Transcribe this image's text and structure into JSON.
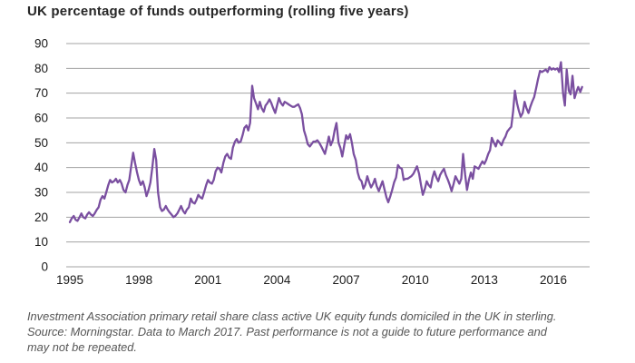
{
  "title": "UK percentage of funds outperforming (rolling five years)",
  "footnote_lines": [
    "Investment Association primary retail share class active UK equity funds domiciled in the UK in sterling.",
    "Source: Morningstar. Data to March 2017. Past performance is not a guide to future performance and",
    "may not be repeated."
  ],
  "colors": {
    "line": "#7a4fa0",
    "grid": "#a3a3a3",
    "title_text": "#262626",
    "tick_text": "#1a1a1a",
    "footnote_text": "#555555"
  },
  "chart_data": {
    "type": "line",
    "title": "UK percentage of funds outperforming (rolling five years)",
    "xlabel": "",
    "ylabel": "",
    "ylim": [
      0,
      90
    ],
    "xlim": [
      1995,
      2017.25
    ],
    "grid": true,
    "legend_position": "none",
    "x_ticks": [
      1995,
      1998,
      2001,
      2004,
      2007,
      2010,
      2013,
      2016
    ],
    "y_ticks": [
      90,
      80,
      70,
      60,
      50,
      40,
      30,
      20,
      10,
      0
    ],
    "series": [
      {
        "name": "UK percentage of funds outperforming (rolling five years)",
        "color": "#7a4fa0",
        "points": [
          [
            1995.0,
            18
          ],
          [
            1995.08,
            19.5
          ],
          [
            1995.17,
            20.5
          ],
          [
            1995.25,
            19
          ],
          [
            1995.33,
            18.5
          ],
          [
            1995.42,
            20
          ],
          [
            1995.5,
            21.5
          ],
          [
            1995.58,
            20
          ],
          [
            1995.67,
            19.5
          ],
          [
            1995.75,
            21
          ],
          [
            1995.83,
            22
          ],
          [
            1995.92,
            21
          ],
          [
            1996.0,
            20.5
          ],
          [
            1996.08,
            21.5
          ],
          [
            1996.17,
            23
          ],
          [
            1996.25,
            24
          ],
          [
            1996.33,
            27
          ],
          [
            1996.42,
            28.5
          ],
          [
            1996.5,
            27.5
          ],
          [
            1996.58,
            30
          ],
          [
            1996.67,
            33
          ],
          [
            1996.75,
            35
          ],
          [
            1996.83,
            34
          ],
          [
            1996.92,
            34.5
          ],
          [
            1997.0,
            35.5
          ],
          [
            1997.08,
            34
          ],
          [
            1997.17,
            35
          ],
          [
            1997.25,
            33.5
          ],
          [
            1997.33,
            31
          ],
          [
            1997.42,
            30
          ],
          [
            1997.5,
            33
          ],
          [
            1997.58,
            35
          ],
          [
            1997.67,
            41
          ],
          [
            1997.75,
            46
          ],
          [
            1997.83,
            42
          ],
          [
            1997.92,
            38
          ],
          [
            1998.0,
            35
          ],
          [
            1998.08,
            33
          ],
          [
            1998.17,
            34.5
          ],
          [
            1998.25,
            32
          ],
          [
            1998.33,
            28.5
          ],
          [
            1998.42,
            31
          ],
          [
            1998.5,
            34
          ],
          [
            1998.58,
            40
          ],
          [
            1998.67,
            47.5
          ],
          [
            1998.75,
            43
          ],
          [
            1998.83,
            30
          ],
          [
            1998.92,
            24
          ],
          [
            1999.0,
            22.5
          ],
          [
            1999.08,
            23
          ],
          [
            1999.17,
            24.5
          ],
          [
            1999.25,
            23
          ],
          [
            1999.33,
            22
          ],
          [
            1999.42,
            21
          ],
          [
            1999.5,
            20
          ],
          [
            1999.58,
            20.5
          ],
          [
            1999.67,
            21.5
          ],
          [
            1999.75,
            23
          ],
          [
            1999.83,
            24.5
          ],
          [
            1999.92,
            22.5
          ],
          [
            2000.0,
            21.5
          ],
          [
            2000.08,
            23
          ],
          [
            2000.17,
            24
          ],
          [
            2000.25,
            27.5
          ],
          [
            2000.33,
            26
          ],
          [
            2000.42,
            25.5
          ],
          [
            2000.5,
            27
          ],
          [
            2000.58,
            29
          ],
          [
            2000.67,
            28
          ],
          [
            2000.75,
            27.5
          ],
          [
            2000.83,
            30
          ],
          [
            2000.92,
            33
          ],
          [
            2001.0,
            35
          ],
          [
            2001.08,
            34
          ],
          [
            2001.17,
            33.5
          ],
          [
            2001.25,
            35
          ],
          [
            2001.33,
            38.5
          ],
          [
            2001.42,
            40
          ],
          [
            2001.5,
            39.5
          ],
          [
            2001.58,
            38
          ],
          [
            2001.67,
            42
          ],
          [
            2001.75,
            44.5
          ],
          [
            2001.83,
            45.5
          ],
          [
            2001.92,
            44
          ],
          [
            2002.0,
            43.5
          ],
          [
            2002.08,
            48
          ],
          [
            2002.17,
            50.5
          ],
          [
            2002.25,
            51.5
          ],
          [
            2002.33,
            50
          ],
          [
            2002.42,
            50.5
          ],
          [
            2002.5,
            53
          ],
          [
            2002.58,
            56
          ],
          [
            2002.67,
            57
          ],
          [
            2002.75,
            55
          ],
          [
            2002.83,
            58
          ],
          [
            2002.92,
            73
          ],
          [
            2003.0,
            68
          ],
          [
            2003.08,
            66
          ],
          [
            2003.17,
            63.5
          ],
          [
            2003.25,
            66.5
          ],
          [
            2003.33,
            64
          ],
          [
            2003.42,
            62.5
          ],
          [
            2003.5,
            65
          ],
          [
            2003.58,
            66
          ],
          [
            2003.67,
            67.5
          ],
          [
            2003.75,
            66
          ],
          [
            2003.83,
            64
          ],
          [
            2003.92,
            62
          ],
          [
            2004.0,
            65
          ],
          [
            2004.08,
            68
          ],
          [
            2004.17,
            66
          ],
          [
            2004.25,
            65
          ],
          [
            2004.33,
            66.5
          ],
          [
            2004.42,
            66
          ],
          [
            2004.5,
            65.5
          ],
          [
            2004.58,
            65
          ],
          [
            2004.67,
            64.5
          ],
          [
            2004.75,
            64.5
          ],
          [
            2004.83,
            65
          ],
          [
            2004.92,
            65.5
          ],
          [
            2005.0,
            64
          ],
          [
            2005.08,
            61.5
          ],
          [
            2005.17,
            55
          ],
          [
            2005.25,
            52.5
          ],
          [
            2005.33,
            49.5
          ],
          [
            2005.42,
            48.5
          ],
          [
            2005.5,
            49.5
          ],
          [
            2005.58,
            50.5
          ],
          [
            2005.67,
            50.5
          ],
          [
            2005.75,
            51
          ],
          [
            2005.83,
            50
          ],
          [
            2005.92,
            48.5
          ],
          [
            2006.0,
            47
          ],
          [
            2006.08,
            45.5
          ],
          [
            2006.17,
            49
          ],
          [
            2006.25,
            52.5
          ],
          [
            2006.33,
            49
          ],
          [
            2006.42,
            51
          ],
          [
            2006.5,
            55
          ],
          [
            2006.58,
            58
          ],
          [
            2006.67,
            50
          ],
          [
            2006.75,
            48
          ],
          [
            2006.83,
            44.5
          ],
          [
            2006.92,
            49
          ],
          [
            2007.0,
            53
          ],
          [
            2007.08,
            51.5
          ],
          [
            2007.17,
            53.5
          ],
          [
            2007.25,
            50
          ],
          [
            2007.33,
            45.5
          ],
          [
            2007.42,
            43
          ],
          [
            2007.5,
            38
          ],
          [
            2007.58,
            35.5
          ],
          [
            2007.67,
            34.5
          ],
          [
            2007.75,
            31.5
          ],
          [
            2007.83,
            33
          ],
          [
            2007.92,
            36.5
          ],
          [
            2008.0,
            34
          ],
          [
            2008.08,
            32
          ],
          [
            2008.17,
            33.5
          ],
          [
            2008.25,
            35.5
          ],
          [
            2008.33,
            32.5
          ],
          [
            2008.42,
            30.5
          ],
          [
            2008.5,
            32.5
          ],
          [
            2008.58,
            34.5
          ],
          [
            2008.67,
            31
          ],
          [
            2008.75,
            28
          ],
          [
            2008.83,
            26
          ],
          [
            2008.92,
            28.5
          ],
          [
            2009.0,
            31
          ],
          [
            2009.08,
            34
          ],
          [
            2009.17,
            36
          ],
          [
            2009.25,
            41
          ],
          [
            2009.33,
            40
          ],
          [
            2009.42,
            39.5
          ],
          [
            2009.5,
            35
          ],
          [
            2009.58,
            35.5
          ],
          [
            2009.67,
            35.5
          ],
          [
            2009.75,
            36
          ],
          [
            2009.83,
            36.5
          ],
          [
            2009.92,
            37.5
          ],
          [
            2010.0,
            39
          ],
          [
            2010.08,
            40.5
          ],
          [
            2010.17,
            37.5
          ],
          [
            2010.25,
            33
          ],
          [
            2010.33,
            29
          ],
          [
            2010.42,
            31.5
          ],
          [
            2010.5,
            34.5
          ],
          [
            2010.58,
            33
          ],
          [
            2010.67,
            32
          ],
          [
            2010.75,
            36
          ],
          [
            2010.83,
            38.5
          ],
          [
            2010.92,
            36
          ],
          [
            2011.0,
            34.5
          ],
          [
            2011.08,
            37
          ],
          [
            2011.17,
            38.5
          ],
          [
            2011.25,
            39.5
          ],
          [
            2011.33,
            37
          ],
          [
            2011.42,
            35
          ],
          [
            2011.5,
            33
          ],
          [
            2011.58,
            30.5
          ],
          [
            2011.67,
            33.5
          ],
          [
            2011.75,
            36.5
          ],
          [
            2011.83,
            35
          ],
          [
            2011.92,
            33.5
          ],
          [
            2012.0,
            35.5
          ],
          [
            2012.08,
            45.5
          ],
          [
            2012.17,
            37
          ],
          [
            2012.25,
            31
          ],
          [
            2012.33,
            35
          ],
          [
            2012.42,
            38
          ],
          [
            2012.5,
            35.5
          ],
          [
            2012.58,
            40.5
          ],
          [
            2012.67,
            40
          ],
          [
            2012.75,
            39.5
          ],
          [
            2012.83,
            41
          ],
          [
            2012.92,
            42.5
          ],
          [
            2013.0,
            41.5
          ],
          [
            2013.08,
            43
          ],
          [
            2013.17,
            45.5
          ],
          [
            2013.25,
            47
          ],
          [
            2013.33,
            52
          ],
          [
            2013.42,
            50
          ],
          [
            2013.5,
            48.5
          ],
          [
            2013.58,
            51
          ],
          [
            2013.67,
            50
          ],
          [
            2013.75,
            49
          ],
          [
            2013.83,
            51
          ],
          [
            2013.92,
            52.5
          ],
          [
            2014.0,
            54.5
          ],
          [
            2014.08,
            55.5
          ],
          [
            2014.17,
            56.5
          ],
          [
            2014.25,
            62.5
          ],
          [
            2014.33,
            71
          ],
          [
            2014.42,
            66
          ],
          [
            2014.5,
            63
          ],
          [
            2014.58,
            60.5
          ],
          [
            2014.67,
            62
          ],
          [
            2014.75,
            66.5
          ],
          [
            2014.83,
            64
          ],
          [
            2014.92,
            62
          ],
          [
            2015.0,
            64.5
          ],
          [
            2015.08,
            66.5
          ],
          [
            2015.17,
            68.5
          ],
          [
            2015.25,
            72
          ],
          [
            2015.33,
            75.5
          ],
          [
            2015.42,
            79
          ],
          [
            2015.5,
            78.5
          ],
          [
            2015.58,
            79
          ],
          [
            2015.67,
            79.5
          ],
          [
            2015.75,
            78.5
          ],
          [
            2015.83,
            80.5
          ],
          [
            2015.92,
            79.5
          ],
          [
            2016.0,
            80
          ],
          [
            2016.08,
            79.5
          ],
          [
            2016.17,
            80
          ],
          [
            2016.25,
            78.5
          ],
          [
            2016.33,
            82.5
          ],
          [
            2016.42,
            70
          ],
          [
            2016.5,
            65
          ],
          [
            2016.58,
            79.5
          ],
          [
            2016.67,
            71
          ],
          [
            2016.75,
            69.5
          ],
          [
            2016.83,
            77
          ],
          [
            2016.92,
            68
          ],
          [
            2017.0,
            70.5
          ],
          [
            2017.08,
            72.5
          ],
          [
            2017.17,
            70.5
          ],
          [
            2017.25,
            72.5
          ]
        ]
      }
    ]
  }
}
